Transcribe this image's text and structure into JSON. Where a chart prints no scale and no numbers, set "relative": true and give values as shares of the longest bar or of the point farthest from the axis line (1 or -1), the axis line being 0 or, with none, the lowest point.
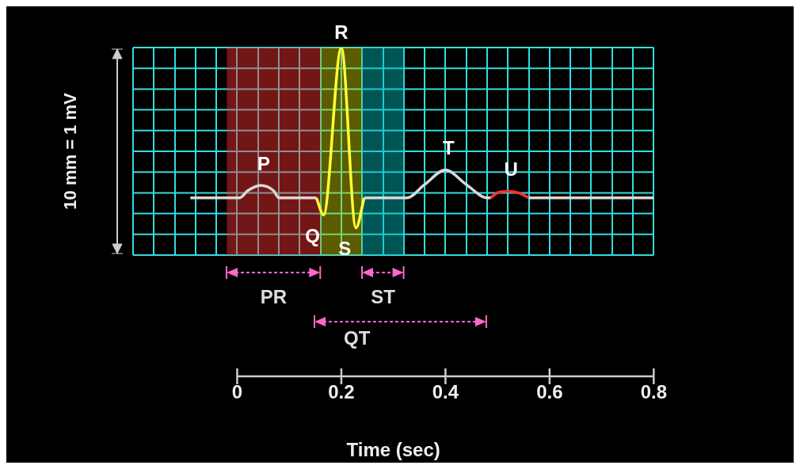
{
  "chart_data": {
    "type": "line",
    "relative": true,
    "xlabel": "Time (sec)",
    "ylabel": "10 mm = 1 mV",
    "xlim": [
      -0.2,
      0.8
    ],
    "xticks": [
      {
        "value": -0.2,
        "label": null
      },
      {
        "value": -0.16,
        "label": null
      },
      {
        "value": -0.12,
        "label": null
      },
      {
        "value": -0.08,
        "label": null
      },
      {
        "value": -0.04,
        "label": null
      },
      0,
      {
        "value": 0.04,
        "label": null
      },
      {
        "value": 0.08,
        "label": null
      },
      {
        "value": 0.12,
        "label": null
      },
      {
        "value": 0.16,
        "label": null
      },
      0.2,
      {
        "value": 0.24,
        "label": null
      },
      {
        "value": 0.28,
        "label": null
      },
      {
        "value": 0.32,
        "label": null
      },
      {
        "value": 0.36,
        "label": null
      },
      0.4,
      {
        "value": 0.44,
        "label": null
      },
      {
        "value": 0.48,
        "label": null
      },
      {
        "value": 0.52,
        "label": null
      },
      {
        "value": 0.56,
        "label": null
      },
      0.6,
      {
        "value": 0.64,
        "label": null
      },
      {
        "value": 0.68,
        "label": null
      },
      {
        "value": 0.72,
        "label": null
      },
      {
        "value": 0.76,
        "label": null
      },
      0.8
    ],
    "grid": true,
    "marker": "none",
    "line_style": "solid",
    "series": [
      {
        "color": "#d8d8d8",
        "x": [
          -0.09,
          0.005,
          0.02,
          0.045,
          0.07,
          0.08,
          0.152,
          0.166,
          0.2,
          0.228,
          0.244,
          0.326,
          0.36,
          0.4,
          0.44,
          0.48,
          0.487,
          0.5,
          0.52,
          0.54,
          0.56,
          0.8
        ],
        "values": [
          0.276,
          0.276,
          0.31,
          0.336,
          0.31,
          0.276,
          0.276,
          null,
          null,
          null,
          0.276,
          0.276,
          0.34,
          0.41,
          0.34,
          0.276,
          0.276,
          null,
          null,
          null,
          0.276,
          0.276
        ]
      },
      {
        "color": "#ffff33",
        "x": [
          0.152,
          0.166,
          0.2,
          0.228,
          0.244
        ],
        "values": [
          0.276,
          0.194,
          1,
          0.131,
          0.276
        ]
      },
      {
        "color": "#ff3030",
        "x": [
          0.487,
          0.5,
          0.52,
          0.54,
          0.56
        ],
        "values": [
          0.276,
          0.3,
          0.307,
          0.3,
          0.276
        ]
      }
    ],
    "bands": [
      {
        "axis": "x",
        "from": -0.02,
        "to": 0.16,
        "color": "#ff3030",
        "label": "PR"
      },
      {
        "axis": "x",
        "from": 0.16,
        "to": 0.24,
        "color": "#cccc00"
      },
      {
        "axis": "x",
        "from": 0.24,
        "to": 0.32,
        "color": "#00bbbb",
        "label": "ST"
      }
    ],
    "annotations": [
      {
        "text": "P",
        "x": 0.045,
        "y": 0.336
      },
      {
        "text": "Q",
        "x": 0.166,
        "y": 0.194
      },
      {
        "text": "R",
        "x": 0.2,
        "y": 1
      },
      {
        "text": "S",
        "x": 0.228,
        "y": 0.131
      },
      {
        "text": "T",
        "x": 0.4,
        "y": 0.41
      },
      {
        "text": "U",
        "x": 0.52,
        "y": 0.307
      },
      "QT"
    ]
  }
}
